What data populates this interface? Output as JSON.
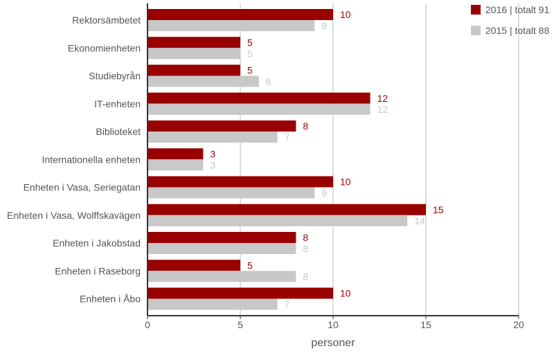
{
  "chart_data": {
    "type": "bar",
    "orientation": "horizontal",
    "categories": [
      "Rektorsämbetet",
      "Ekonomienheten",
      "Studiebyrån",
      "IT-enheten",
      "Biblioteket",
      "Internationella enheten",
      "Enheten i Vasa, Seriegatan",
      "Enheten i Vasa, Wolffskavägen",
      "Enheten i Jakobstad",
      "Enheten i Raseborg",
      "Enheten i Åbo"
    ],
    "series": [
      {
        "name": "2016 | totalt 91",
        "color": "#990000",
        "values": [
          10,
          5,
          5,
          12,
          8,
          3,
          10,
          15,
          8,
          5,
          10
        ]
      },
      {
        "name": "2015 | totalt 88",
        "color": "#c8c8c8",
        "values": [
          9,
          5,
          6,
          12,
          7,
          3,
          9,
          14,
          8,
          8,
          7
        ]
      }
    ],
    "xlabel": "personer",
    "ylabel": "",
    "xlim": [
      0,
      20
    ],
    "xticks": [
      0,
      5,
      10,
      15,
      20
    ],
    "grid": true,
    "legend_position": "top-right"
  }
}
